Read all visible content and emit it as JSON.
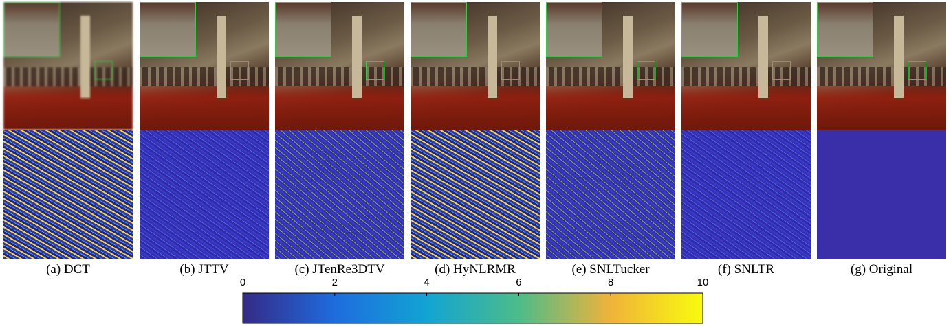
{
  "figure": {
    "captions": [
      "(a) DCT",
      "(b) JTTV",
      "(c) JTenRe3DTV",
      "(d) HyNLRMR",
      "(e) SNLTucker",
      "(f) SNLTR",
      "(g) Original"
    ],
    "colorbar": {
      "lim": [
        0,
        10
      ],
      "ticks": [
        0,
        2,
        4,
        6,
        8,
        10
      ]
    }
  }
}
